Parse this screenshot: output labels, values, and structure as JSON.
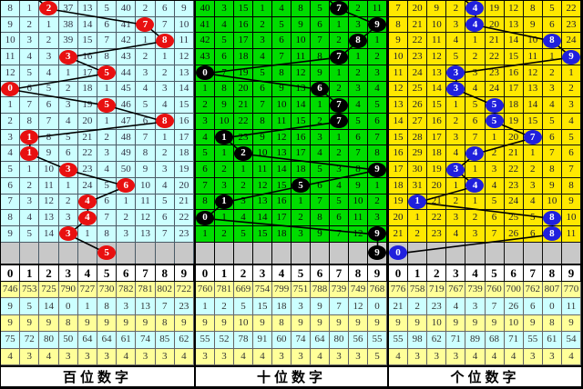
{
  "chart_data": {
    "type": "table",
    "description_columns": [
      "0",
      "1",
      "2",
      "3",
      "4",
      "5",
      "6",
      "7",
      "8",
      "9"
    ],
    "panels": [
      {
        "footer_label": "百位数字",
        "theme": {
          "bg": "#CCFFFF",
          "grid": "#4a5a66",
          "ink": "#333344",
          "circle": "#E81010"
        },
        "columns": [
          "0",
          "1",
          "2",
          "3",
          "4",
          "5",
          "6",
          "7",
          "8",
          "9"
        ],
        "rows": [
          [
            "8",
            "1",
            "2",
            "37",
            "13",
            "5",
            "40",
            "2",
            "6",
            "9"
          ],
          [
            "9",
            "2",
            "1",
            "38",
            "14",
            "6",
            "41",
            "7",
            "7",
            "10"
          ],
          [
            "10",
            "3",
            "2",
            "39",
            "15",
            "7",
            "42",
            "1",
            "8",
            "11"
          ],
          [
            "11",
            "4",
            "3",
            "3",
            "16",
            "8",
            "43",
            "2",
            "1",
            "12"
          ],
          [
            "12",
            "5",
            "4",
            "1",
            "17",
            "5",
            "44",
            "3",
            "2",
            "13"
          ],
          [
            "0",
            "6",
            "5",
            "2",
            "18",
            "1",
            "45",
            "4",
            "3",
            "14"
          ],
          [
            "1",
            "7",
            "6",
            "3",
            "19",
            "5",
            "46",
            "5",
            "4",
            "15"
          ],
          [
            "2",
            "8",
            "7",
            "4",
            "20",
            "1",
            "47",
            "6",
            "8",
            "16"
          ],
          [
            "3",
            "1",
            "8",
            "5",
            "21",
            "2",
            "48",
            "7",
            "1",
            "17"
          ],
          [
            "4",
            "1",
            "9",
            "6",
            "22",
            "3",
            "49",
            "8",
            "2",
            "18"
          ],
          [
            "5",
            "1",
            "10",
            "3",
            "23",
            "4",
            "50",
            "9",
            "3",
            "19"
          ],
          [
            "6",
            "2",
            "11",
            "1",
            "24",
            "5",
            "6",
            "10",
            "4",
            "20"
          ],
          [
            "7",
            "3",
            "12",
            "2",
            "4",
            "6",
            "1",
            "11",
            "5",
            "21"
          ],
          [
            "8",
            "4",
            "13",
            "3",
            "4",
            "7",
            "2",
            "12",
            "6",
            "22"
          ],
          [
            "9",
            "5",
            "14",
            "3",
            "1",
            "8",
            "3",
            "13",
            "7",
            "23"
          ]
        ],
        "circle_cols": [
          2,
          7,
          8,
          3,
          5,
          0,
          5,
          8,
          1,
          1,
          3,
          6,
          4,
          4,
          3
        ],
        "pending": {
          "col": 5,
          "value": "5"
        },
        "stats": [
          {
            "style": "yellow",
            "values": [
              "746",
              "753",
              "725",
              "790",
              "727",
              "730",
              "782",
              "781",
              "802",
              "722"
            ]
          },
          {
            "style": "cyan",
            "values": [
              "9",
              "5",
              "14",
              "0",
              "1",
              "8",
              "3",
              "13",
              "7",
              "23"
            ]
          },
          {
            "style": "yellow",
            "values": [
              "9",
              "9",
              "9",
              "8",
              "9",
              "9",
              "9",
              "9",
              "8",
              "9"
            ]
          },
          {
            "style": "cyan",
            "values": [
              "75",
              "72",
              "80",
              "50",
              "64",
              "64",
              "61",
              "74",
              "85",
              "62"
            ]
          },
          {
            "style": "yellow",
            "values": [
              "4",
              "3",
              "4",
              "3",
              "3",
              "3",
              "4",
              "3",
              "3",
              "4"
            ]
          }
        ]
      },
      {
        "footer_label": "十位数字",
        "theme": {
          "bg": "#00DC00",
          "grid": "#000000",
          "ink": "#0a0a0a",
          "circle": "#000000"
        },
        "columns": [
          "0",
          "1",
          "2",
          "3",
          "4",
          "5",
          "6",
          "7",
          "8",
          "9"
        ],
        "rows": [
          [
            "40",
            "3",
            "15",
            "1",
            "4",
            "8",
            "5",
            "7",
            "2",
            "11"
          ],
          [
            "41",
            "4",
            "16",
            "2",
            "5",
            "9",
            "6",
            "1",
            "3",
            "9"
          ],
          [
            "42",
            "5",
            "17",
            "3",
            "6",
            "10",
            "7",
            "2",
            "8",
            "1"
          ],
          [
            "43",
            "6",
            "18",
            "4",
            "7",
            "11",
            "8",
            "7",
            "1",
            "2"
          ],
          [
            "0",
            "7",
            "19",
            "5",
            "8",
            "12",
            "9",
            "1",
            "2",
            "3"
          ],
          [
            "1",
            "8",
            "20",
            "6",
            "9",
            "13",
            "6",
            "2",
            "3",
            "4"
          ],
          [
            "2",
            "9",
            "21",
            "7",
            "10",
            "14",
            "1",
            "7",
            "4",
            "5"
          ],
          [
            "3",
            "10",
            "22",
            "8",
            "11",
            "15",
            "2",
            "7",
            "5",
            "6"
          ],
          [
            "4",
            "1",
            "23",
            "9",
            "12",
            "16",
            "3",
            "1",
            "6",
            "7"
          ],
          [
            "5",
            "1",
            "2",
            "10",
            "13",
            "17",
            "4",
            "2",
            "7",
            "8"
          ],
          [
            "6",
            "2",
            "1",
            "11",
            "14",
            "18",
            "5",
            "3",
            "8",
            "9"
          ],
          [
            "7",
            "3",
            "2",
            "12",
            "15",
            "5",
            "6",
            "4",
            "9",
            "1"
          ],
          [
            "8",
            "1",
            "3",
            "13",
            "16",
            "1",
            "7",
            "5",
            "10",
            "2"
          ],
          [
            "0",
            "1",
            "4",
            "14",
            "17",
            "2",
            "8",
            "6",
            "11",
            "3"
          ],
          [
            "1",
            "2",
            "5",
            "15",
            "18",
            "3",
            "9",
            "7",
            "12",
            "9"
          ]
        ],
        "circle_cols": [
          7,
          9,
          8,
          7,
          0,
          6,
          7,
          7,
          1,
          2,
          9,
          5,
          1,
          0,
          9
        ],
        "pending": {
          "col": 9,
          "value": "9"
        },
        "stats": [
          {
            "style": "yellow",
            "values": [
              "760",
              "781",
              "669",
              "754",
              "799",
              "751",
              "788",
              "739",
              "749",
              "768"
            ]
          },
          {
            "style": "cyan",
            "values": [
              "1",
              "2",
              "5",
              "15",
              "18",
              "3",
              "9",
              "7",
              "12",
              "0"
            ]
          },
          {
            "style": "yellow",
            "values": [
              "9",
              "9",
              "10",
              "9",
              "8",
              "9",
              "9",
              "9",
              "9",
              "9"
            ]
          },
          {
            "style": "cyan",
            "values": [
              "55",
              "52",
              "78",
              "91",
              "60",
              "74",
              "64",
              "80",
              "56",
              "55"
            ]
          },
          {
            "style": "yellow",
            "values": [
              "3",
              "3",
              "4",
              "4",
              "3",
              "3",
              "4",
              "3",
              "3",
              "5"
            ]
          }
        ]
      },
      {
        "footer_label": "个位数字",
        "theme": {
          "bg": "#FFE800",
          "grid": "#101010",
          "ink": "#1a1a2e",
          "circle": "#2020DD"
        },
        "columns": [
          "0",
          "1",
          "2",
          "3",
          "4",
          "5",
          "6",
          "7",
          "8",
          "9"
        ],
        "rows": [
          [
            "7",
            "20",
            "9",
            "2",
            "4",
            "19",
            "12",
            "8",
            "5",
            "22"
          ],
          [
            "8",
            "21",
            "10",
            "3",
            "4",
            "20",
            "13",
            "9",
            "6",
            "23"
          ],
          [
            "9",
            "22",
            "11",
            "4",
            "1",
            "21",
            "14",
            "10",
            "8",
            "24"
          ],
          [
            "10",
            "23",
            "12",
            "5",
            "2",
            "22",
            "15",
            "11",
            "1",
            "9"
          ],
          [
            "11",
            "24",
            "13",
            "3",
            "3",
            "23",
            "16",
            "12",
            "2",
            "1"
          ],
          [
            "12",
            "25",
            "14",
            "3",
            "4",
            "24",
            "17",
            "13",
            "3",
            "2"
          ],
          [
            "13",
            "26",
            "15",
            "1",
            "5",
            "5",
            "18",
            "14",
            "4",
            "3"
          ],
          [
            "14",
            "27",
            "16",
            "2",
            "6",
            "5",
            "19",
            "15",
            "5",
            "4"
          ],
          [
            "15",
            "28",
            "17",
            "3",
            "7",
            "1",
            "20",
            "7",
            "6",
            "5"
          ],
          [
            "16",
            "29",
            "18",
            "4",
            "4",
            "2",
            "21",
            "1",
            "7",
            "6"
          ],
          [
            "17",
            "30",
            "19",
            "3",
            "1",
            "3",
            "22",
            "2",
            "8",
            "7"
          ],
          [
            "18",
            "31",
            "20",
            "1",
            "4",
            "4",
            "23",
            "3",
            "9",
            "8"
          ],
          [
            "19",
            "1",
            "21",
            "2",
            "1",
            "5",
            "24",
            "4",
            "10",
            "9"
          ],
          [
            "20",
            "1",
            "22",
            "3",
            "2",
            "6",
            "25",
            "5",
            "8",
            "10"
          ],
          [
            "21",
            "2",
            "23",
            "4",
            "3",
            "7",
            "26",
            "6",
            "8",
            "11"
          ]
        ],
        "circle_cols": [
          4,
          4,
          8,
          9,
          3,
          3,
          5,
          5,
          7,
          4,
          3,
          4,
          1,
          8,
          8
        ],
        "pending": {
          "col": 0,
          "value": "0"
        },
        "stats": [
          {
            "style": "yellow",
            "values": [
              "776",
              "758",
              "719",
              "767",
              "739",
              "760",
              "700",
              "762",
              "807",
              "770"
            ]
          },
          {
            "style": "cyan",
            "values": [
              "21",
              "2",
              "23",
              "4",
              "3",
              "7",
              "26",
              "6",
              "0",
              "11"
            ]
          },
          {
            "style": "yellow",
            "values": [
              "9",
              "9",
              "10",
              "9",
              "9",
              "9",
              "10",
              "9",
              "8",
              "9"
            ]
          },
          {
            "style": "cyan",
            "values": [
              "55",
              "98",
              "62",
              "71",
              "89",
              "68",
              "71",
              "55",
              "61",
              "54"
            ]
          },
          {
            "style": "yellow",
            "values": [
              "4",
              "3",
              "3",
              "3",
              "4",
              "4",
              "4",
              "3",
              "3",
              "4"
            ]
          }
        ]
      }
    ],
    "colors": {
      "gray_row": "#C8C8C8",
      "stat_yellow": "#FFFF99",
      "stat_cyan": "#CCFFFF",
      "trend_line": "#000000"
    }
  }
}
